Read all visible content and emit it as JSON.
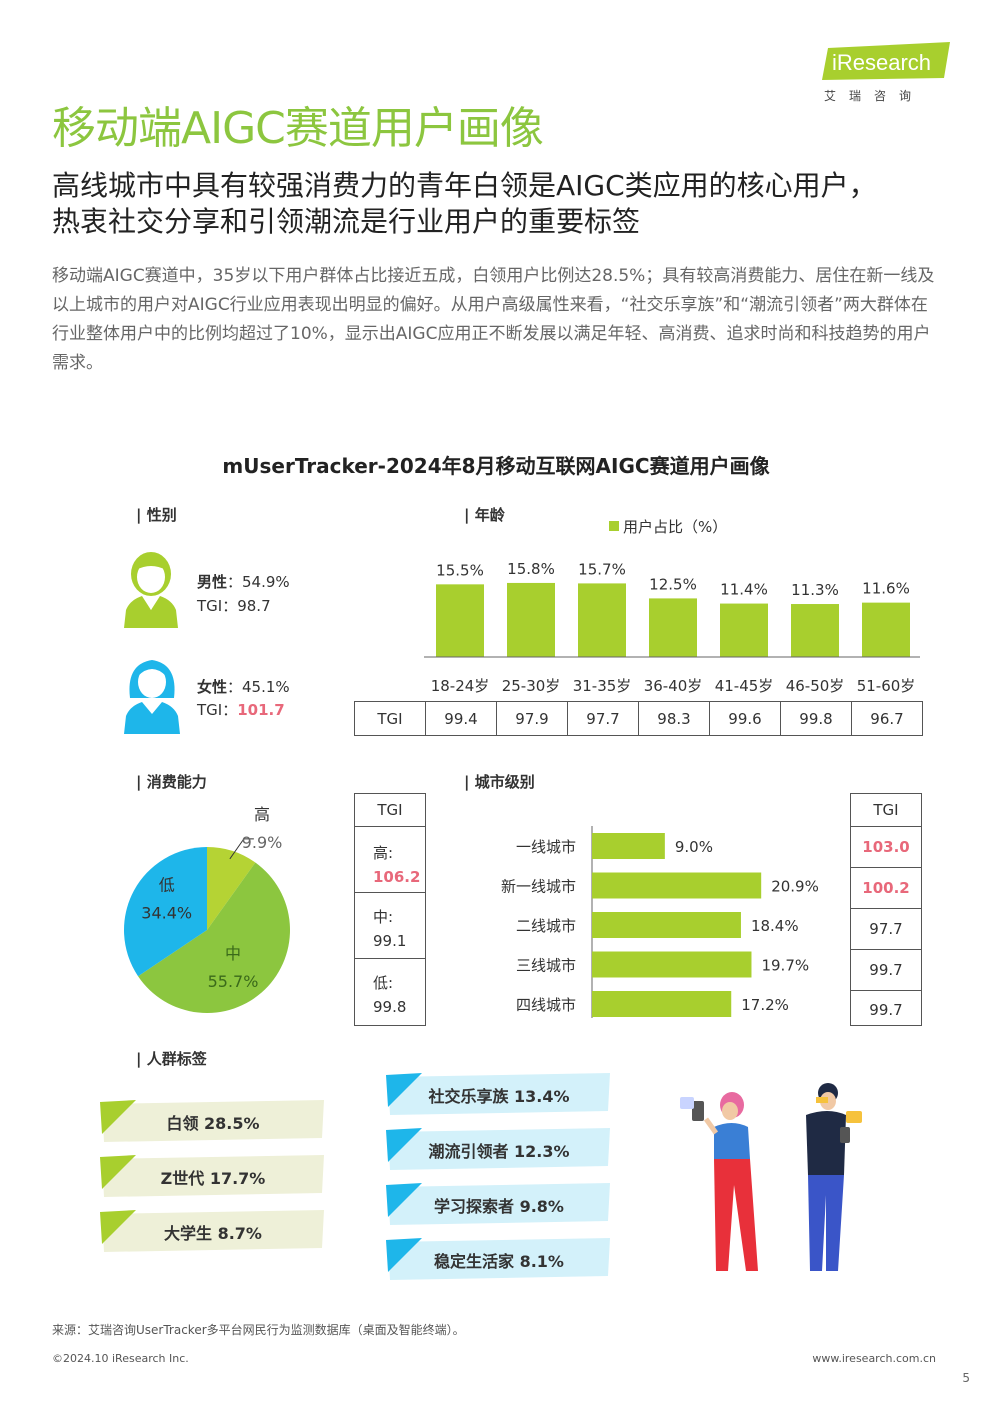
{
  "header": {
    "title": "移动端AIGC赛道用户画像",
    "logo_brand": "iResearch",
    "logo_sub": "艾瑞咨询",
    "subtitle_line1": "高线城市中具有较强消费力的青年白领是AIGC类应用的核心用户，",
    "subtitle_line2": "热衷社交分享和引领潮流是行业用户的重要标签",
    "intro": "移动端AIGC赛道中，35岁以下用户群体占比接近五成，白领用户比例达28.5%；具有较高消费能力、居住在新一线及以上城市的用户对AIGC行业应用表现出明显的偏好。从用户高级属性来看，“社交乐享族”和“潮流引领者”两大群体在行业整体用户中的比例均超过了10%，显示出AIGC应用正不断发展以满足年轻、高消费、追求时尚和科技趋势的用户需求。"
  },
  "chart_title": "mUserTracker-2024年8月移动互联网AIGC赛道用户画像",
  "gender": {
    "section": "| 性别",
    "male": {
      "label": "男性",
      "value": "：54.9%",
      "tgi_label": "TGI：",
      "tgi": "98.7"
    },
    "female": {
      "label": "女性",
      "value": "：45.1%",
      "tgi_label": "TGI：",
      "tgi": "101.7"
    }
  },
  "age": {
    "section": "| 年龄",
    "tgi_header": "TGI",
    "tgi": [
      "99.4",
      "97.9",
      "97.7",
      "98.3",
      "99.6",
      "99.8",
      "96.7"
    ]
  },
  "consumption": {
    "section": "| 消费能力",
    "tgi_header": "TGI",
    "tgi_cells": [
      {
        "label": "高:",
        "value": "106.2"
      },
      {
        "label": "中:",
        "value": "99.1"
      },
      {
        "label": "低:",
        "value": "99.8"
      }
    ]
  },
  "city": {
    "section": "| 城市级别",
    "tgi_header": "TGI",
    "tgi": [
      "103.0",
      "100.2",
      "97.7",
      "99.7",
      "99.7"
    ]
  },
  "tags": {
    "section": "| 人群标签",
    "left": [
      "白领  28.5%",
      "Z世代  17.7%",
      "大学生  8.7%"
    ],
    "right": [
      "社交乐享族  13.4%",
      "潮流引领者  12.3%",
      "学习探索者  9.8%",
      "稳定生活家  8.1%"
    ]
  },
  "footer": {
    "source": "来源：艾瑞咨询UserTracker多平台网民行为监测数据库（桌面及智能终端）。",
    "copyright": "©2024.10 iResearch Inc.",
    "website": "www.iresearch.com.cn",
    "page": "5"
  },
  "colors": {
    "green": "#8cc63f",
    "bar": "#a8cf2e",
    "blue": "#1eb6ea",
    "red": "#e8687a"
  },
  "chart_data": [
    {
      "type": "bar",
      "title": "",
      "legend": "用户占比（%）",
      "categories": [
        "18-24岁",
        "25-30岁",
        "31-35岁",
        "36-40岁",
        "41-45岁",
        "46-50岁",
        "51-60岁"
      ],
      "values": [
        15.5,
        15.8,
        15.7,
        12.5,
        11.4,
        11.3,
        11.6
      ],
      "ylim": [
        0,
        16
      ]
    },
    {
      "type": "pie",
      "title": "",
      "slices": [
        {
          "label": "高",
          "value": 9.9
        },
        {
          "label": "中",
          "value": 55.7
        },
        {
          "label": "低",
          "value": 34.4
        }
      ]
    },
    {
      "type": "bar",
      "orientation": "horizontal",
      "title": "",
      "categories": [
        "一线城市",
        "新一线城市",
        "二线城市",
        "三线城市",
        "四线城市"
      ],
      "values": [
        9.0,
        20.9,
        18.4,
        19.7,
        17.2
      ],
      "xlim": [
        0,
        21
      ]
    }
  ]
}
